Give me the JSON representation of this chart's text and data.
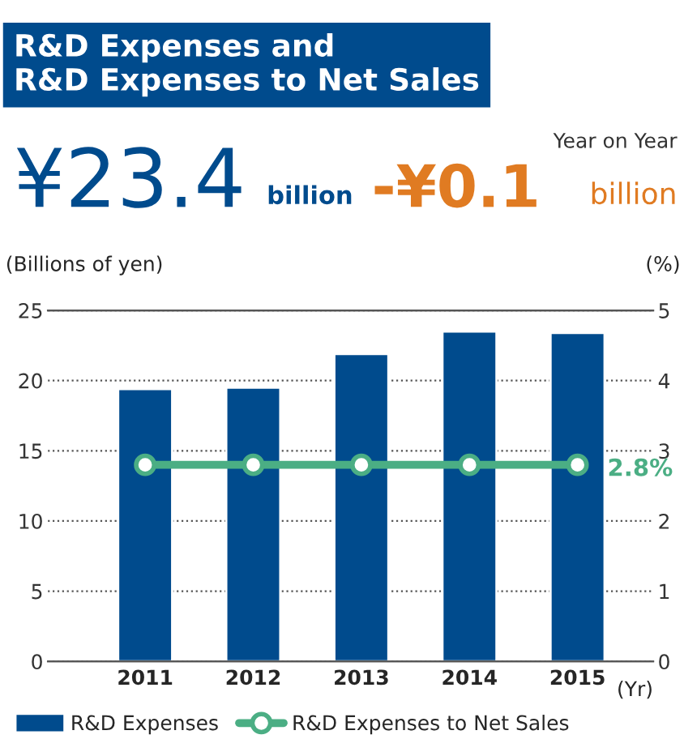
{
  "chart_data": {
    "type": "bar",
    "title": "R&D Expenses and\nR&D Expenses to Net Sales",
    "categories": [
      "2011",
      "2012",
      "2013",
      "2014",
      "2015"
    ],
    "series": [
      {
        "name": "R&D Expenses",
        "color": "#004b8d",
        "values": [
          19.4,
          19.5,
          21.9,
          23.5,
          23.4
        ]
      },
      {
        "name": "R&D Expenses to Net Sales",
        "type": "line",
        "axis": "y2",
        "color": "#4bae84",
        "values": [
          2.8,
          2.8,
          2.8,
          2.8,
          2.8
        ]
      }
    ],
    "ylabel": "(Billions of yen)",
    "y2label": "(%)",
    "xlabel": "(Yr)",
    "ylim": [
      0,
      25
    ],
    "yticks": [
      0,
      5,
      10,
      15,
      20,
      25
    ],
    "y2lim": [
      0,
      5
    ],
    "y2ticks": [
      0,
      1,
      2,
      3,
      4,
      5
    ],
    "grid": "y",
    "legend": "bottom",
    "marker": "circle",
    "line_style": "solid",
    "annotations": [
      "¥23.4",
      "billion",
      "Year on Year",
      "-¥0.1",
      "billion",
      "2.8%"
    ]
  }
}
